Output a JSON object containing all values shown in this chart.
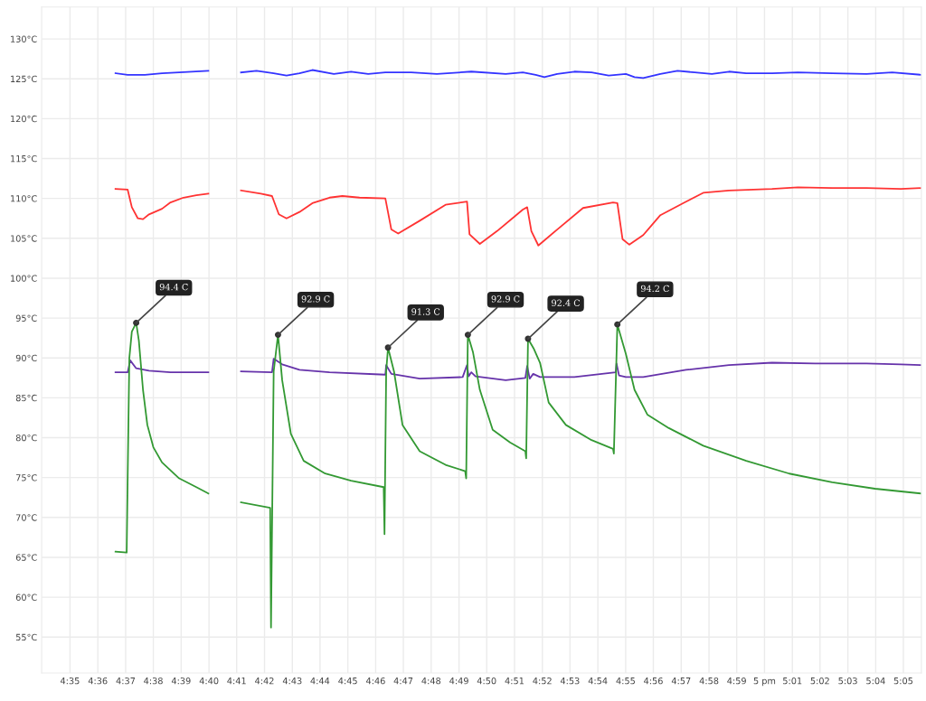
{
  "chart_data": {
    "type": "line",
    "grid": true,
    "marker": "none",
    "line_style": "solid",
    "xlim": [
      4.5663,
      5.0941
    ],
    "ylim": [
      50.5,
      134
    ],
    "xticks": [
      {
        "value": 4.5833,
        "label": "4:35"
      },
      {
        "value": 4.6,
        "label": "4:36"
      },
      {
        "value": 4.6167,
        "label": "4:37"
      },
      {
        "value": 4.6333,
        "label": "4:38"
      },
      {
        "value": 4.65,
        "label": "4:39"
      },
      {
        "value": 4.6667,
        "label": "4:40"
      },
      {
        "value": 4.6833,
        "label": "4:41"
      },
      {
        "value": 4.7,
        "label": "4:42"
      },
      {
        "value": 4.7167,
        "label": "4:43"
      },
      {
        "value": 4.7333,
        "label": "4:44"
      },
      {
        "value": 4.75,
        "label": "4:45"
      },
      {
        "value": 4.7667,
        "label": "4:46"
      },
      {
        "value": 4.7833,
        "label": "4:47"
      },
      {
        "value": 4.8,
        "label": "4:48"
      },
      {
        "value": 4.8167,
        "label": "4:49"
      },
      {
        "value": 4.8333,
        "label": "4:50"
      },
      {
        "value": 4.85,
        "label": "4:51"
      },
      {
        "value": 4.8667,
        "label": "4:52"
      },
      {
        "value": 4.8833,
        "label": "4:53"
      },
      {
        "value": 4.9,
        "label": "4:54"
      },
      {
        "value": 4.9167,
        "label": "4:55"
      },
      {
        "value": 4.9333,
        "label": "4:56"
      },
      {
        "value": 4.95,
        "label": "4:57"
      },
      {
        "value": 4.9667,
        "label": "4:58"
      },
      {
        "value": 4.9833,
        "label": "4:59"
      },
      {
        "value": 5,
        "label": "5 pm"
      },
      {
        "value": 5.0167,
        "label": "5:01"
      },
      {
        "value": 5.0333,
        "label": "5:02"
      },
      {
        "value": 5.05,
        "label": "5:03"
      },
      {
        "value": 5.0667,
        "label": "5:04"
      },
      {
        "value": 5.0833,
        "label": "5:05"
      }
    ],
    "yticks": [
      {
        "value": 55,
        "label": "55°C"
      },
      {
        "value": 60,
        "label": "60°C"
      },
      {
        "value": 65,
        "label": "65°C"
      },
      {
        "value": 70,
        "label": "70°C"
      },
      {
        "value": 75,
        "label": "75°C"
      },
      {
        "value": 80,
        "label": "80°C"
      },
      {
        "value": 85,
        "label": "85°C"
      },
      {
        "value": 90,
        "label": "90°C"
      },
      {
        "value": 95,
        "label": "95°C"
      },
      {
        "value": 100,
        "label": "100°C"
      },
      {
        "value": 105,
        "label": "105°C"
      },
      {
        "value": 110,
        "label": "110°C"
      },
      {
        "value": 115,
        "label": "115°C"
      },
      {
        "value": 120,
        "label": "120°C"
      },
      {
        "value": 125,
        "label": "125°C"
      },
      {
        "value": 130,
        "label": "130°C"
      }
    ],
    "series": [
      {
        "color": "#3333ff",
        "x": [
          4.6106,
          4.6179,
          4.6282,
          4.6385,
          4.6488,
          4.6663,
          4.676,
          4.6859,
          4.6952,
          4.7055,
          4.7132,
          4.721,
          4.7287,
          4.7416,
          4.7519,
          4.7622,
          4.7725,
          4.788,
          4.8034,
          4.8241,
          4.8447,
          4.855,
          4.8627,
          4.8679,
          4.8756,
          4.8859,
          4.8962,
          4.9065,
          4.9168,
          4.922,
          4.9272,
          4.9375,
          4.9478,
          4.9581,
          4.9684,
          4.9787,
          4.989,
          5.0045,
          5.02,
          5.0406,
          5.0612,
          5.0766,
          5.0941
        ],
        "values": [
          125.7,
          125.5,
          125.5,
          125.7,
          125.8,
          126.0,
          null,
          125.8,
          126.0,
          125.7,
          125.4,
          125.7,
          126.1,
          125.6,
          125.9,
          125.6,
          125.8,
          125.8,
          125.6,
          125.9,
          125.6,
          125.8,
          125.5,
          125.2,
          125.6,
          125.9,
          125.8,
          125.4,
          125.6,
          125.2,
          125.1,
          125.6,
          126.0,
          125.8,
          125.6,
          125.9,
          125.7,
          125.7,
          125.8,
          125.7,
          125.6,
          125.8,
          125.5
        ]
      },
      {
        "color": "#ff3333",
        "x": [
          4.6106,
          4.6179,
          4.6204,
          4.624,
          4.6271,
          4.6307,
          4.6385,
          4.6436,
          4.6514,
          4.6591,
          4.6663,
          4.676,
          4.6859,
          4.6978,
          4.7045,
          4.7086,
          4.7132,
          4.721,
          4.7287,
          4.739,
          4.7467,
          4.757,
          4.7725,
          4.7761,
          4.7802,
          4.7931,
          4.8086,
          4.8215,
          4.823,
          4.8292,
          4.8395,
          4.855,
          4.8576,
          4.8601,
          4.8643,
          4.8756,
          4.8911,
          4.9091,
          4.9117,
          4.9148,
          4.9189,
          4.9272,
          4.9375,
          4.9529,
          4.9632,
          4.9787,
          5.0045,
          5.02,
          5.0406,
          5.0612,
          5.0818,
          5.0941
        ],
        "values": [
          111.2,
          111.1,
          108.9,
          107.5,
          107.4,
          108.0,
          108.7,
          109.5,
          110.1,
          110.4,
          110.6,
          null,
          111.0,
          110.6,
          110.3,
          108.0,
          107.5,
          108.3,
          109.4,
          110.1,
          110.3,
          110.1,
          110.0,
          106.1,
          105.6,
          107.2,
          109.2,
          109.6,
          105.5,
          104.3,
          105.9,
          108.6,
          108.9,
          105.9,
          104.1,
          106.1,
          108.8,
          109.5,
          109.4,
          104.9,
          104.2,
          105.4,
          107.9,
          109.6,
          110.7,
          111.0,
          111.2,
          111.4,
          111.3,
          111.3,
          111.2,
          111.3
        ]
      },
      {
        "color": "#6633aa",
        "x": [
          4.6106,
          4.6179,
          4.6194,
          4.623,
          4.6307,
          4.6436,
          4.6663,
          4.676,
          4.6859,
          4.7045,
          4.7055,
          4.7106,
          4.721,
          4.739,
          4.7725,
          4.773,
          4.7761,
          4.7931,
          4.8189,
          4.8215,
          4.8225,
          4.8241,
          4.8266,
          4.8447,
          4.8565,
          4.8576,
          4.8591,
          4.8612,
          4.8653,
          4.8859,
          4.9107,
          4.9112,
          4.9127,
          4.9168,
          4.9272,
          4.9529,
          4.9787,
          5.0045,
          5.0303,
          5.0612,
          5.0818,
          5.0941
        ],
        "values": [
          88.2,
          88.2,
          89.7,
          88.7,
          88.4,
          88.2,
          88.2,
          null,
          88.3,
          88.2,
          89.9,
          89.2,
          88.5,
          88.2,
          87.9,
          89.1,
          88.0,
          87.4,
          87.6,
          89.1,
          87.7,
          88.2,
          87.7,
          87.2,
          87.5,
          89.0,
          87.4,
          88.0,
          87.6,
          87.6,
          88.2,
          89.3,
          87.8,
          87.6,
          87.6,
          88.5,
          89.1,
          89.4,
          89.3,
          89.3,
          89.2,
          89.1
        ]
      },
      {
        "color": "#339933",
        "x": [
          4.6106,
          4.6173,
          4.6179,
          4.6189,
          4.6204,
          4.623,
          4.6246,
          4.6271,
          4.6297,
          4.6333,
          4.6385,
          4.6488,
          4.6591,
          4.6663,
          4.676,
          4.6859,
          4.7034,
          4.7039,
          4.7055,
          4.7081,
          4.7106,
          4.7158,
          4.7235,
          4.7364,
          4.7519,
          4.7715,
          4.772,
          4.773,
          4.7741,
          4.7777,
          4.7828,
          4.7931,
          4.8086,
          4.8204,
          4.821,
          4.822,
          4.8251,
          4.8292,
          4.8369,
          4.8473,
          4.8565,
          4.857,
          4.8581,
          4.8617,
          4.8653,
          4.8705,
          4.8808,
          4.8962,
          4.9091,
          4.9096,
          4.9117,
          4.9168,
          4.922,
          4.9297,
          4.9426,
          4.9632,
          4.989,
          5.0148,
          5.0406,
          5.0663,
          5.0941
        ],
        "values": [
          65.7,
          65.6,
          75.0,
          90.0,
          93.3,
          94.4,
          92.2,
          86.0,
          81.6,
          78.8,
          76.9,
          74.9,
          73.8,
          73.0,
          null,
          71.9,
          71.2,
          56.2,
          88.3,
          92.9,
          87.2,
          80.5,
          77.1,
          75.5,
          74.6,
          73.8,
          67.9,
          88.3,
          91.3,
          88.3,
          81.6,
          78.3,
          76.6,
          75.8,
          74.9,
          92.9,
          90.7,
          86.0,
          81.0,
          79.4,
          78.3,
          77.4,
          92.4,
          91.1,
          89.4,
          84.4,
          81.6,
          79.7,
          78.6,
          78.0,
          94.2,
          90.5,
          86.0,
          82.9,
          81.2,
          79.0,
          77.1,
          75.5,
          74.4,
          73.6,
          73.0
        ]
      }
    ],
    "annotations": [
      {
        "text": "94.4 C",
        "x": 4.623,
        "y": 94.4
      },
      {
        "text": "92.9 C",
        "x": 4.7081,
        "y": 92.9
      },
      {
        "text": "91.3 C",
        "x": 4.7741,
        "y": 91.3
      },
      {
        "text": "92.9 C",
        "x": 4.822,
        "y": 92.9
      },
      {
        "text": "92.4 C",
        "x": 4.8581,
        "y": 92.4
      },
      {
        "text": "94.2 C",
        "x": 4.9117,
        "y": 94.2
      }
    ]
  }
}
